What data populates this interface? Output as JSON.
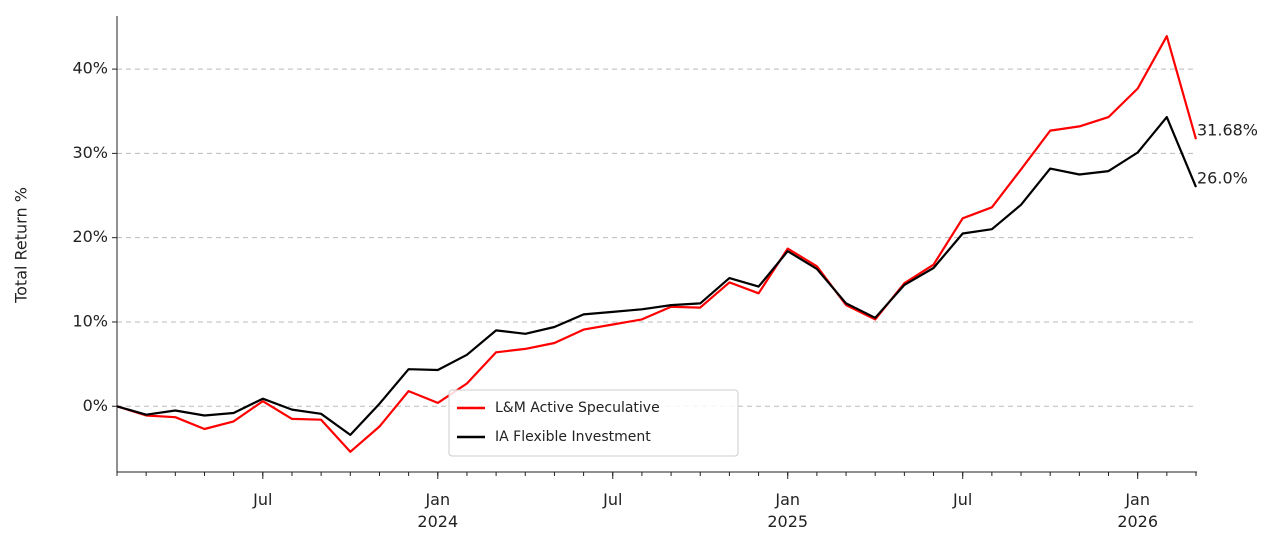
{
  "chart_data": {
    "type": "line",
    "y_label": "Total Return %",
    "x": [
      "2023-02",
      "2023-03",
      "2023-04",
      "2023-05",
      "2023-06",
      "2023-07",
      "2023-08",
      "2023-09",
      "2023-10",
      "2023-11",
      "2023-12",
      "2024-01",
      "2024-02",
      "2024-03",
      "2024-04",
      "2024-05",
      "2024-06",
      "2024-07",
      "2024-08",
      "2024-09",
      "2024-10",
      "2024-11",
      "2024-12",
      "2025-01",
      "2025-02",
      "2025-03",
      "2025-04",
      "2025-05",
      "2025-06",
      "2025-07",
      "2025-08",
      "2025-09",
      "2025-10",
      "2025-11",
      "2025-12",
      "2026-01",
      "2026-02",
      "2026-03"
    ],
    "series": [
      {
        "name": "L&M Active Speculative",
        "color": "#ff0000",
        "values": [
          0,
          -1.1,
          -1.3,
          -2.7,
          -1.8,
          0.6,
          -1.5,
          -1.6,
          -5.4,
          -2.4,
          1.8,
          0.4,
          2.7,
          6.4,
          6.8,
          7.5,
          9.1,
          9.7,
          10.3,
          11.8,
          11.7,
          14.7,
          13.4,
          18.7,
          16.6,
          12.0,
          10.3,
          14.6,
          16.8,
          22.3,
          23.6,
          28.1,
          32.7,
          33.2,
          34.3,
          37.7,
          43.9,
          31.68
        ],
        "value_labels": [
          null,
          null,
          null,
          null,
          null,
          null,
          null,
          null,
          null,
          null,
          null,
          null,
          null,
          null,
          null,
          null,
          null,
          null,
          null,
          null,
          null,
          null,
          null,
          null,
          null,
          null,
          null,
          null,
          null,
          null,
          null,
          null,
          null,
          null,
          null,
          null,
          null,
          "31.68%"
        ]
      },
      {
        "name": "IA Flexible Investment",
        "color": "#000000",
        "values": [
          0,
          -1.0,
          -0.5,
          -1.1,
          -0.8,
          0.9,
          -0.4,
          -0.9,
          -3.4,
          0.3,
          4.4,
          4.3,
          6.1,
          9.0,
          8.6,
          9.4,
          10.9,
          11.2,
          11.5,
          12.0,
          12.2,
          15.2,
          14.2,
          18.4,
          16.3,
          12.2,
          10.5,
          14.4,
          16.4,
          20.5,
          21.0,
          23.9,
          28.2,
          27.5,
          27.9,
          30.1,
          34.3,
          26.0
        ],
        "value_labels": [
          null,
          null,
          null,
          null,
          null,
          null,
          null,
          null,
          null,
          null,
          null,
          null,
          null,
          null,
          null,
          null,
          null,
          null,
          null,
          null,
          null,
          null,
          null,
          null,
          null,
          null,
          null,
          null,
          null,
          null,
          null,
          null,
          null,
          null,
          null,
          null,
          null,
          "26.0%"
        ]
      }
    ],
    "xlim": [
      "2023-02",
      "2026-03"
    ],
    "xticks": [
      {
        "value": "2023-07",
        "label": "Jul"
      },
      {
        "value": "2024-01",
        "label": "Jan 2024"
      },
      {
        "value": "2024-07",
        "label": "Jul"
      },
      {
        "value": "2025-01",
        "label": "Jan 2025"
      },
      {
        "value": "2025-07",
        "label": "Jul"
      },
      {
        "value": "2026-01",
        "label": "Jan 2026"
      }
    ],
    "ylim": [
      -7.8,
      46.3
    ],
    "yticks": [
      {
        "value": 0,
        "label": "0%"
      },
      {
        "value": 10,
        "label": "10%"
      },
      {
        "value": 20,
        "label": "20%"
      },
      {
        "value": 30,
        "label": "30%"
      },
      {
        "value": 40,
        "label": "40%"
      }
    ],
    "grid": true,
    "legend": "lower center"
  }
}
